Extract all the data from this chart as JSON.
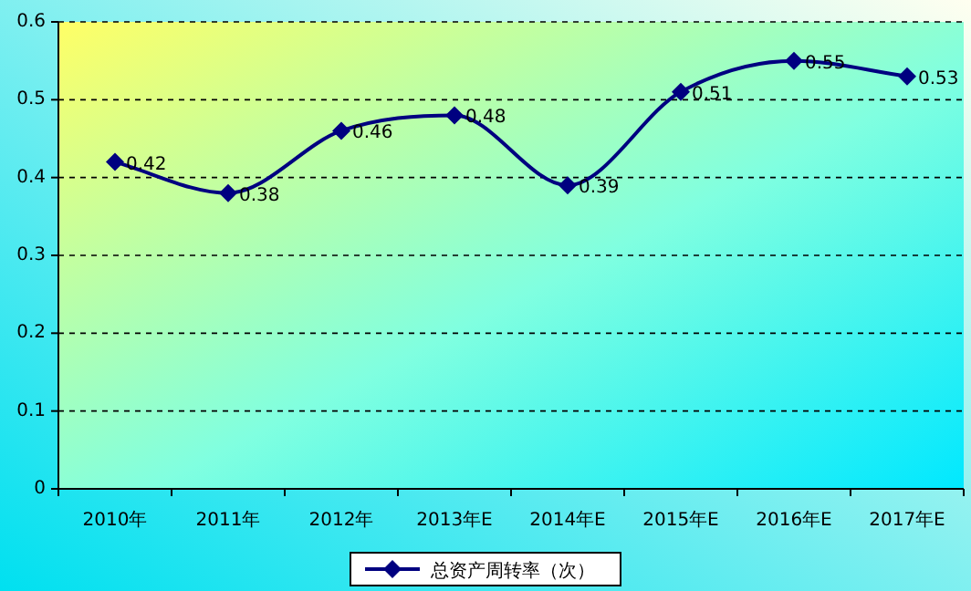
{
  "chart_data": {
    "type": "line",
    "categories": [
      "2010年",
      "2011年",
      "2012年",
      "2013年E",
      "2014年E",
      "2015年E",
      "2016年E",
      "2017年E"
    ],
    "series": [
      {
        "name": "总资产周转率（次）",
        "color": "#000080",
        "values": [
          0.42,
          0.38,
          0.46,
          0.48,
          0.39,
          0.51,
          0.55,
          0.53
        ]
      }
    ],
    "ylim": [
      0,
      0.6
    ],
    "yticks": [
      0,
      0.1,
      0.2,
      0.3,
      0.4,
      0.5,
      0.6
    ],
    "grid": "y",
    "legend": "bottom",
    "marker": "diamond",
    "data_labels": true
  }
}
